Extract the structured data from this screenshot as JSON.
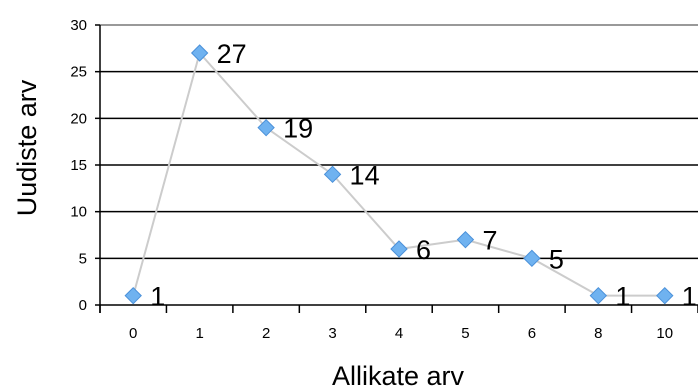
{
  "chart_data": {
    "type": "line",
    "categories": [
      "0",
      "1",
      "2",
      "3",
      "4",
      "5",
      "6",
      "8",
      "10"
    ],
    "values": [
      1,
      27,
      19,
      14,
      6,
      7,
      5,
      1,
      1
    ],
    "data_labels": [
      "1",
      "27",
      "19",
      "14",
      "6",
      "7",
      "5",
      "1",
      "1"
    ],
    "xlabel": "Allikate arv",
    "ylabel": "Uudiste arv",
    "ylim": [
      0,
      30
    ],
    "yticks": [
      "0",
      "5",
      "10",
      "15",
      "20",
      "25",
      "30"
    ],
    "grid": true,
    "legend": "none",
    "colors": {
      "line": "#cccccc",
      "marker": "#6fb2f0",
      "marker_stroke": "#4a90d9",
      "grid": "#000000",
      "top_border": "#999999"
    }
  }
}
